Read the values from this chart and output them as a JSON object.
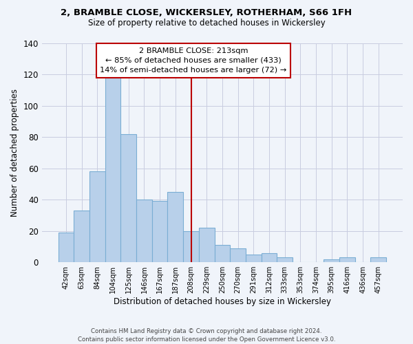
{
  "title_line1": "2, BRAMBLE CLOSE, WICKERSLEY, ROTHERHAM, S66 1FH",
  "title_line2": "Size of property relative to detached houses in Wickersley",
  "bar_labels": [
    "42sqm",
    "63sqm",
    "84sqm",
    "104sqm",
    "125sqm",
    "146sqm",
    "167sqm",
    "187sqm",
    "208sqm",
    "229sqm",
    "250sqm",
    "270sqm",
    "291sqm",
    "312sqm",
    "333sqm",
    "353sqm",
    "374sqm",
    "395sqm",
    "416sqm",
    "436sqm",
    "457sqm"
  ],
  "bar_heights": [
    19,
    33,
    58,
    118,
    82,
    40,
    39,
    45,
    20,
    22,
    11,
    9,
    5,
    6,
    3,
    0,
    0,
    2,
    3,
    0,
    3
  ],
  "bar_color": "#b8d0ea",
  "bar_edge_color": "#7aadd4",
  "vline_x": 8.0,
  "vline_color": "#bb0000",
  "xlabel": "Distribution of detached houses by size in Wickersley",
  "ylabel": "Number of detached properties",
  "ylim": [
    0,
    140
  ],
  "yticks": [
    0,
    20,
    40,
    60,
    80,
    100,
    120,
    140
  ],
  "annotation_title": "2 BRAMBLE CLOSE: 213sqm",
  "annotation_line2": "← 85% of detached houses are smaller (433)",
  "annotation_line3": "14% of semi-detached houses are larger (72) →",
  "footer_line1": "Contains HM Land Registry data © Crown copyright and database right 2024.",
  "footer_line2": "Contains public sector information licensed under the Open Government Licence v3.0.",
  "background_color": "#f0f4fa",
  "grid_color": "#c8cce0"
}
